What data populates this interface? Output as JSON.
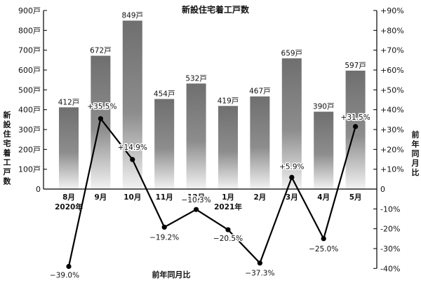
{
  "chart_data": {
    "type": "bar",
    "title": "新設住宅着工戸数",
    "xlabel": "前年同月比",
    "ylabel": "新設住宅着工戸数",
    "y2label": "前年同月比",
    "categories": [
      "8月",
      "9月",
      "10月",
      "11月",
      "12月",
      "1月",
      "2月",
      "3月",
      "4月",
      "5月"
    ],
    "category_sublabels": [
      "2020年",
      "",
      "",
      "",
      "",
      "2021年",
      "",
      "",
      "",
      ""
    ],
    "ylim": [
      0,
      900
    ],
    "yticks": [
      "0",
      "100戸",
      "200戸",
      "300戸",
      "400戸",
      "500戸",
      "600戸",
      "700戸",
      "800戸",
      "900戸"
    ],
    "y2lim": [
      -40,
      90
    ],
    "y2ticks": [
      "-40%",
      "-30%",
      "-20%",
      "-10%",
      "0",
      "+10%",
      "+20%",
      "+30%",
      "+40%",
      "+50%",
      "+60%",
      "+70%",
      "+80%",
      "+90%"
    ],
    "series": [
      {
        "type": "bar",
        "values": [
          412,
          672,
          849,
          454,
          532,
          419,
          467,
          659,
          390,
          597
        ],
        "labels": [
          "412戸",
          "672戸",
          "849戸",
          "454戸",
          "532戸",
          "419戸",
          "467戸",
          "659戸",
          "390戸",
          "597戸"
        ],
        "color": "#7a7a7a"
      },
      {
        "type": "line",
        "axis": "right",
        "values": [
          -39.0,
          35.5,
          14.9,
          -19.2,
          -10.3,
          -20.5,
          -37.3,
          5.9,
          -25.0,
          31.5
        ],
        "labels": [
          "−39.0%",
          "+35.5%",
          "+14.9%",
          "−19.2%",
          "−10.3%",
          "−20.5%",
          "−37.3%",
          "+5.9%",
          "−25.0%",
          "+31.5%"
        ],
        "color": "#000000"
      }
    ],
    "grid": false,
    "legend": "none"
  }
}
